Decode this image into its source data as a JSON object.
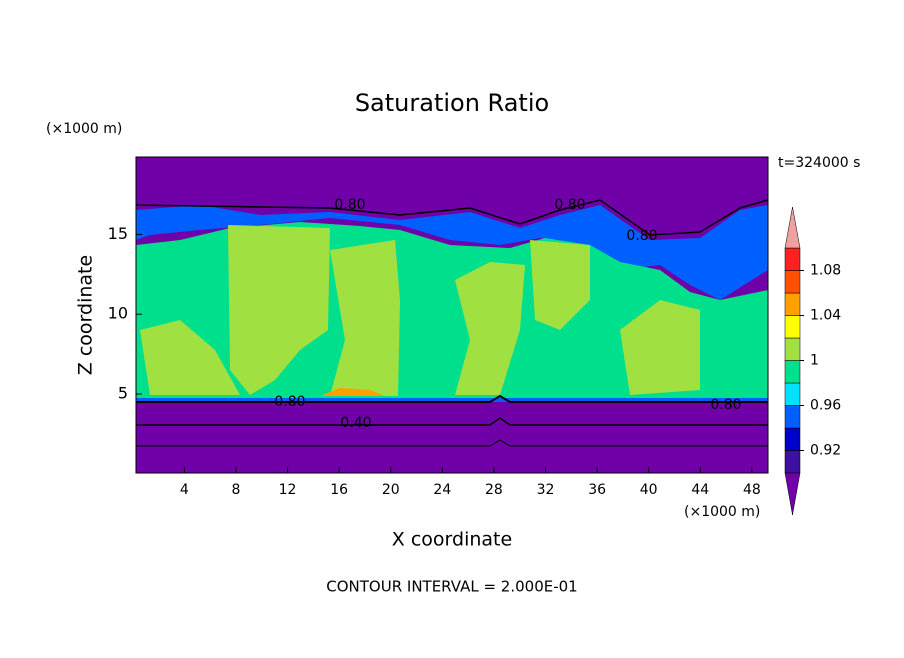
{
  "chart_data": {
    "type": "contour",
    "title": "Saturation Ratio",
    "time_label": "t=324000 s",
    "x_label": "X coordinate",
    "y_label": "Z coordinate",
    "x_unit": "(×1000 m)",
    "y_unit": "(×1000 m)",
    "footer": "CONTOUR INTERVAL = 2.000E-01",
    "xlim": [
      0.25,
      49.25
    ],
    "ylim": [
      0.05,
      19.85
    ],
    "xticks": [
      4,
      8,
      12,
      16,
      20,
      24,
      28,
      32,
      36,
      40,
      44,
      48
    ],
    "yticks": [
      5,
      10,
      15
    ],
    "contour_labels": [
      "0.80",
      "0.80",
      "0.80",
      "0.80",
      "0.80",
      "0.40"
    ],
    "colorbar": {
      "levels": [
        0.9,
        0.92,
        0.94,
        0.96,
        0.98,
        1,
        1.02,
        1.04,
        1.06,
        1.08,
        1.1
      ],
      "colors": [
        "#3c10a0",
        "#0000c8",
        "#0060ff",
        "#00e0ff",
        "#00e08c",
        "#a0e040",
        "#ffff00",
        "#ffa000",
        "#ff5000",
        "#ff2020"
      ],
      "under_color": "#7000a8",
      "over_color": "#f0a0a0",
      "ticks": [
        0.92,
        0.96,
        1,
        1.04,
        1.08
      ]
    }
  }
}
